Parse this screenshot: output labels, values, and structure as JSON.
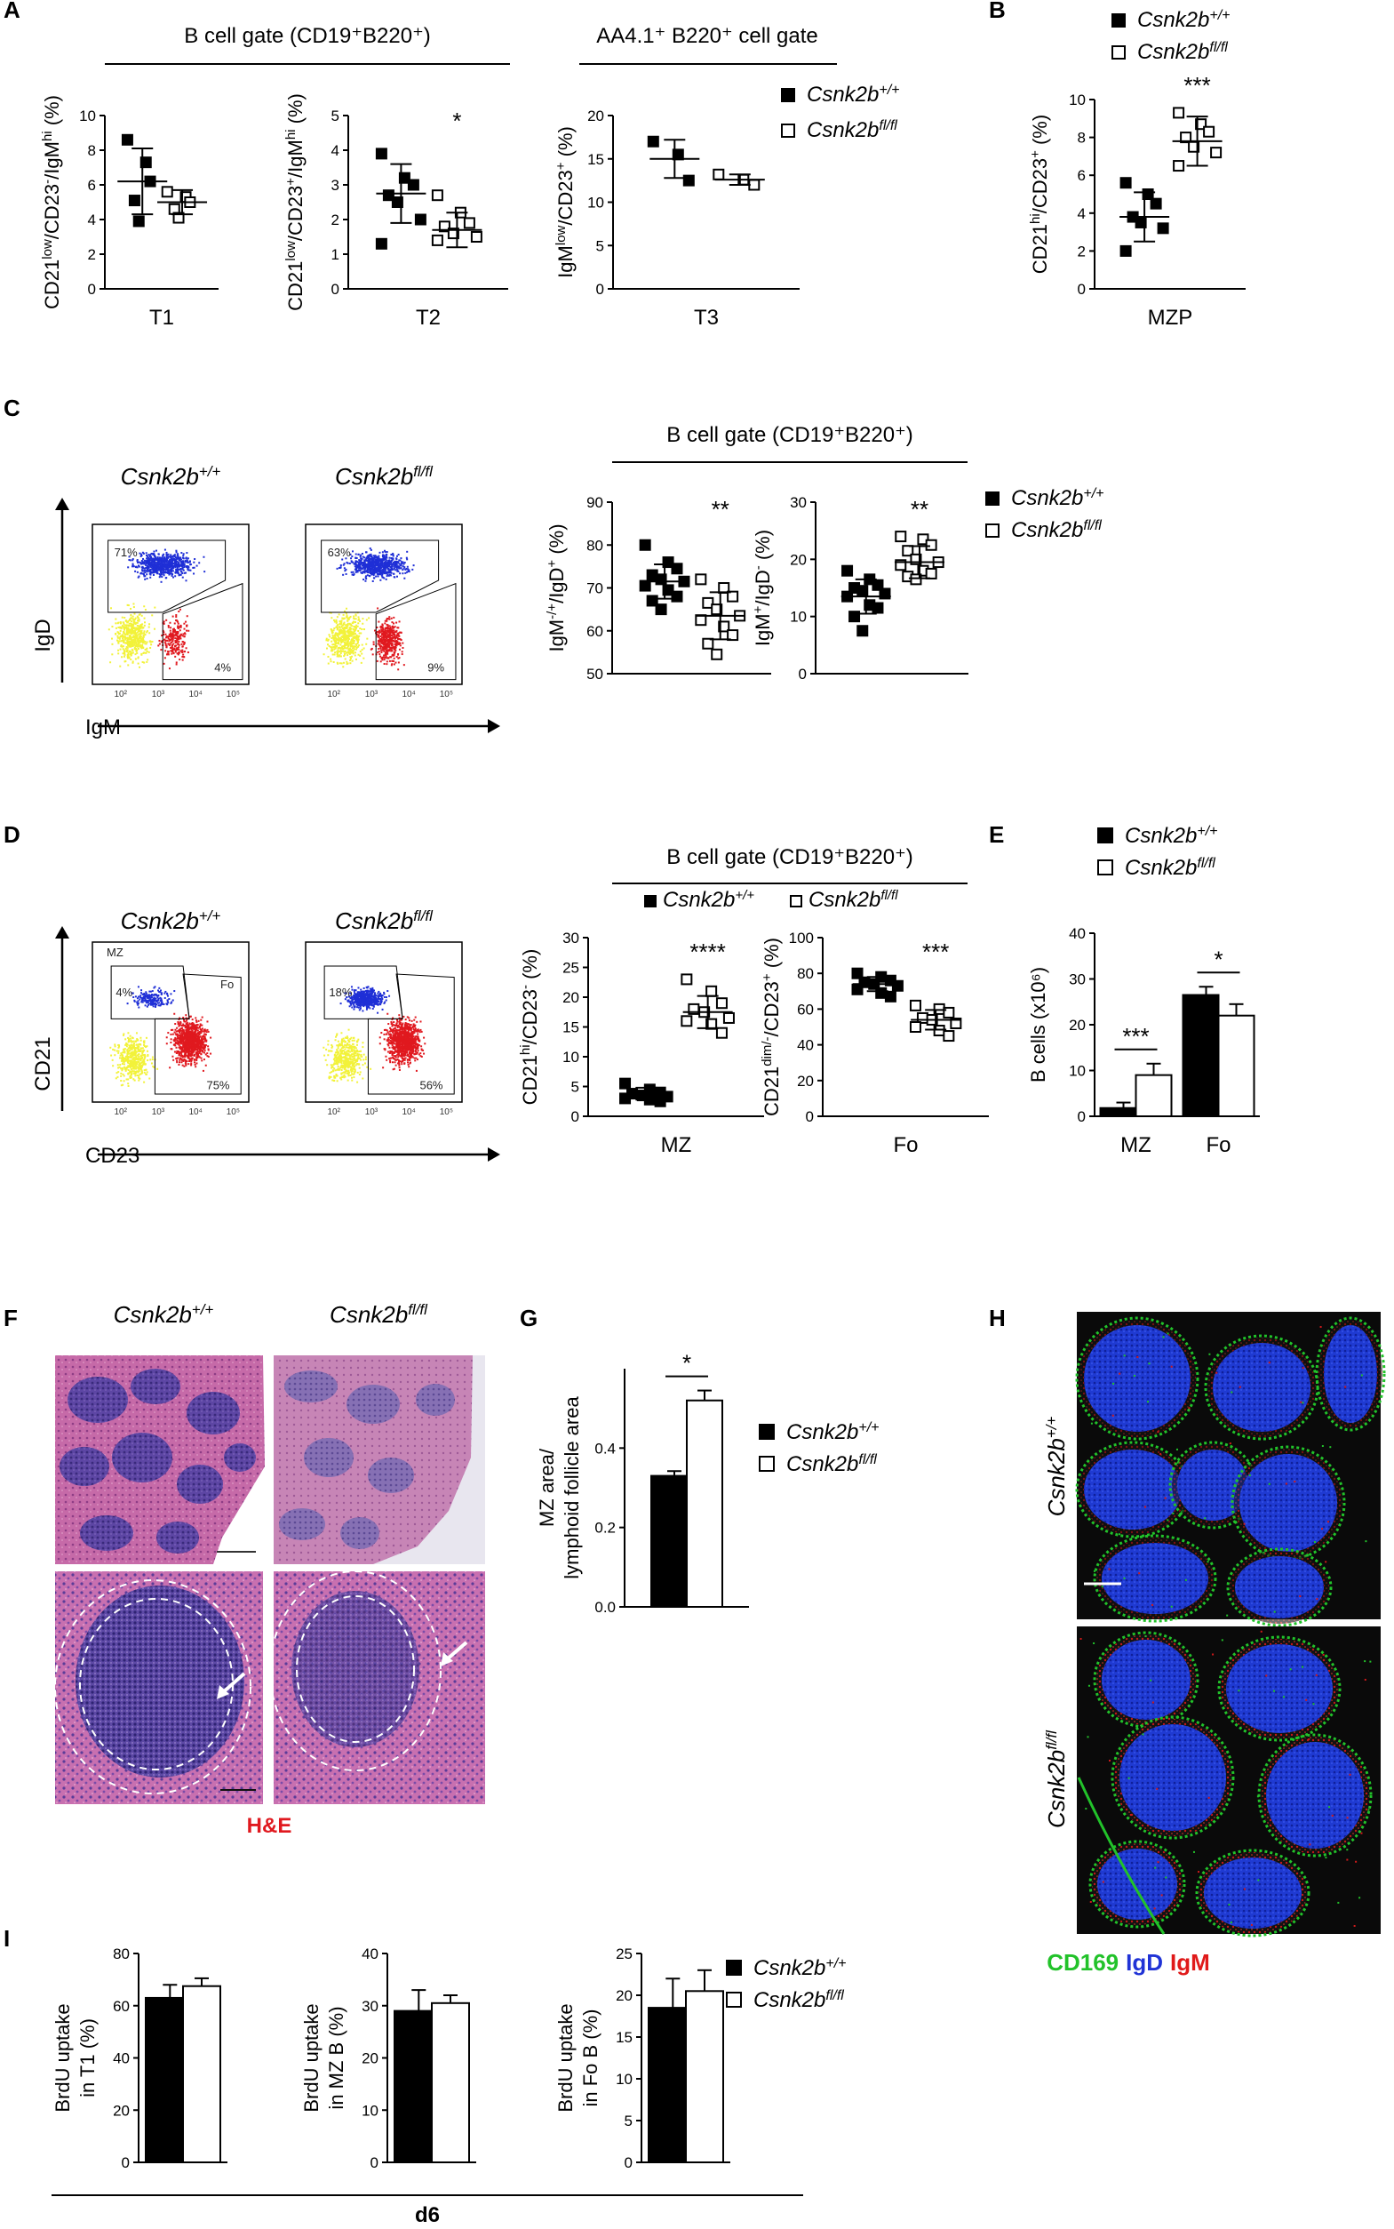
{
  "legend": {
    "wt": "Csnk2b+/+",
    "wt_base": "Csnk2b",
    "wt_sup": "+/+",
    "ko": "Csnk2bfl/fl",
    "ko_base": "Csnk2b",
    "ko_sup": "fl/fl"
  },
  "colors": {
    "wt_fill": "#000000",
    "ko_fill": "#ffffff",
    "facs_blue": "#1f2fd6",
    "facs_red": "#e0191f",
    "facs_yellow": "#f2f23a",
    "he_pink": "#c2559a",
    "he_purple": "#5a3f9e",
    "cd169_green": "#22c22a",
    "igd_blue": "#2033d6",
    "igm_red": "#e01a1a"
  },
  "panels": {
    "A": {
      "letter": "A",
      "gate1": "B cell gate (CD19⁺B220⁺)",
      "gate2": "AA4.1⁺ B220⁺ cell gate"
    },
    "B": {
      "letter": "B"
    },
    "C": {
      "letter": "C",
      "gate": "B cell gate (CD19⁺B220⁺)",
      "facs_y": "IgD",
      "facs_x": "IgM",
      "wt_pcts": [
        "71%",
        "4%"
      ],
      "ko_pcts": [
        "63%",
        "9%"
      ]
    },
    "D": {
      "letter": "D",
      "gate": "B cell gate (CD19⁺B220⁺)",
      "facs_y": "CD21",
      "facs_x": "CD23",
      "gate_mz": "MZ",
      "gate_fo": "Fo",
      "wt_pcts": [
        "4%",
        "75%"
      ],
      "ko_pcts": [
        "18%",
        "56%"
      ]
    },
    "E": {
      "letter": "E"
    },
    "F": {
      "letter": "F",
      "stain": "H&E"
    },
    "G": {
      "letter": "G"
    },
    "H": {
      "letter": "H",
      "stain_cd169": "CD169",
      "stain_igd": "IgD",
      "stain_igm": "IgM"
    },
    "I": {
      "letter": "I",
      "day": "d6"
    }
  },
  "chart_data": [
    {
      "id": "A1",
      "type": "scatter",
      "xlabel": "T1",
      "ylabel": "CD21low/CD23-/IgMhi (%)",
      "ylim": [
        0,
        10
      ],
      "yticks": [
        0,
        2,
        4,
        6,
        8,
        10
      ],
      "series": [
        {
          "name": "Csnk2b+/+",
          "values": [
            8.6,
            7.3,
            6.2,
            5.1,
            3.9
          ],
          "mean": 6.2,
          "sd": 1.9
        },
        {
          "name": "Csnk2bfl/fl",
          "values": [
            5.6,
            5.3,
            5.0,
            4.6,
            4.1
          ],
          "mean": 5.0,
          "sd": 0.7
        }
      ]
    },
    {
      "id": "A2",
      "type": "scatter",
      "xlabel": "T2",
      "ylabel": "CD21low/CD23+/IgMhi (%)",
      "ylim": [
        0,
        5
      ],
      "yticks": [
        0,
        1,
        2,
        3,
        4,
        5
      ],
      "significance": "*",
      "series": [
        {
          "name": "Csnk2b+/+",
          "values": [
            3.9,
            3.2,
            3.0,
            2.7,
            2.5,
            2.0,
            1.3
          ],
          "mean": 2.75,
          "sd": 0.85
        },
        {
          "name": "Csnk2bfl/fl",
          "values": [
            2.7,
            2.2,
            1.9,
            1.8,
            1.6,
            1.5,
            1.4
          ],
          "mean": 1.7,
          "sd": 0.5
        }
      ]
    },
    {
      "id": "A3",
      "type": "scatter",
      "xlabel": "T3",
      "ylabel": "IgMlow/CD23+ (%)",
      "ylim": [
        0,
        20
      ],
      "yticks": [
        0,
        5,
        10,
        15,
        20
      ],
      "series": [
        {
          "name": "Csnk2b+/+",
          "values": [
            17.0,
            15.5,
            12.5
          ],
          "mean": 15.0,
          "sd": 2.2
        },
        {
          "name": "Csnk2bfl/fl",
          "values": [
            13.2,
            12.6,
            12.0
          ],
          "mean": 12.6,
          "sd": 0.6
        }
      ]
    },
    {
      "id": "B",
      "type": "scatter",
      "xlabel": "MZP",
      "ylabel": "CD21hi/CD23+ (%)",
      "ylim": [
        0,
        10
      ],
      "yticks": [
        0,
        2,
        4,
        6,
        8,
        10
      ],
      "significance": "***",
      "series": [
        {
          "name": "Csnk2b+/+",
          "values": [
            5.6,
            5.0,
            4.5,
            3.8,
            3.5,
            3.2,
            2.0
          ],
          "mean": 3.8,
          "sd": 1.3
        },
        {
          "name": "Csnk2bfl/fl",
          "values": [
            9.3,
            8.7,
            8.3,
            8.0,
            7.5,
            7.2,
            6.5
          ],
          "mean": 7.8,
          "sd": 1.3
        }
      ]
    },
    {
      "id": "C1",
      "type": "scatter",
      "xlabel": "",
      "ylabel": "IgM-/+/IgD+ (%)",
      "ylim": [
        50,
        90
      ],
      "yticks": [
        50,
        60,
        70,
        80,
        90
      ],
      "significance": "**",
      "series": [
        {
          "name": "Csnk2b+/+",
          "values": [
            80.0,
            76.0,
            74.5,
            73.0,
            72.0,
            71.5,
            70.5,
            69.5,
            68.0,
            67.0,
            65.0
          ],
          "mean": 71.5,
          "sd": 4.0
        },
        {
          "name": "Csnk2bfl/fl",
          "values": [
            72.0,
            70.0,
            68.0,
            66.5,
            65.0,
            63.5,
            62.5,
            61.0,
            59.0,
            57.0,
            54.5
          ],
          "mean": 63.5,
          "sd": 5.5
        }
      ]
    },
    {
      "id": "C2",
      "type": "scatter",
      "xlabel": "",
      "ylabel": "IgM+/IgD- (%)",
      "ylim": [
        0,
        30
      ],
      "yticks": [
        0,
        10,
        20,
        30
      ],
      "significance": "**",
      "series": [
        {
          "name": "Csnk2b+/+",
          "values": [
            18.0,
            16.5,
            15.5,
            15.0,
            14.5,
            14.0,
            13.5,
            12.0,
            11.5,
            10.0,
            7.5
          ],
          "mean": 13.5,
          "sd": 3.0
        },
        {
          "name": "Csnk2bfl/fl",
          "values": [
            24.0,
            23.5,
            22.5,
            21.5,
            20.0,
            19.5,
            19.0,
            18.0,
            17.5,
            17.0,
            16.5
          ],
          "mean": 19.5,
          "sd": 2.8
        }
      ]
    },
    {
      "id": "D1",
      "type": "scatter",
      "xlabel": "MZ",
      "ylabel": "CD21hi/CD23- (%)",
      "ylim": [
        0,
        30
      ],
      "yticks": [
        0,
        5,
        10,
        15,
        20,
        25,
        30
      ],
      "significance": "****",
      "series": [
        {
          "name": "Csnk2b+/+",
          "values": [
            5.5,
            4.5,
            4.0,
            3.8,
            3.5,
            3.3,
            3.0,
            2.8,
            2.5
          ],
          "mean": 3.8,
          "sd": 1.0
        },
        {
          "name": "Csnk2bfl/fl",
          "values": [
            23.0,
            21.0,
            19.0,
            18.0,
            17.5,
            16.5,
            16.0,
            15.5,
            14.0
          ],
          "mean": 17.5,
          "sd": 2.7
        }
      ]
    },
    {
      "id": "D2",
      "type": "scatter",
      "xlabel": "Fo",
      "ylabel": "CD21dim/-/CD23+ (%)",
      "ylim": [
        0,
        100
      ],
      "yticks": [
        0,
        20,
        40,
        60,
        80,
        100
      ],
      "significance": "***",
      "series": [
        {
          "name": "Csnk2b+/+",
          "values": [
            80.0,
            78.0,
            76.0,
            75.0,
            74.0,
            73.0,
            71.0,
            69.0,
            67.0
          ],
          "mean": 74.0,
          "sd": 4.0
        },
        {
          "name": "Csnk2bfl/fl",
          "values": [
            62.0,
            60.0,
            58.0,
            55.0,
            54.0,
            52.0,
            50.0,
            48.0,
            45.0
          ],
          "mean": 54.0,
          "sd": 5.5
        }
      ]
    },
    {
      "id": "E",
      "type": "bar",
      "categories": [
        "MZ",
        "Fo"
      ],
      "ylabel": "B cells (x10⁶)",
      "ylim": [
        0,
        40
      ],
      "yticks": [
        0,
        10,
        20,
        30,
        40
      ],
      "significance": [
        "***",
        "*"
      ],
      "series": [
        {
          "name": "Csnk2b+/+",
          "values": [
            1.8,
            26.5
          ],
          "err": [
            1.2,
            1.8
          ]
        },
        {
          "name": "Csnk2bfl/fl",
          "values": [
            9.0,
            22.0
          ],
          "err": [
            2.5,
            2.5
          ]
        }
      ]
    },
    {
      "id": "G",
      "type": "bar",
      "categories": [
        ""
      ],
      "ylabel": "MZ area/ lymphoid follicle area",
      "ylim": [
        0,
        0.6
      ],
      "yticks": [
        "0.0",
        "0.2",
        "0.4"
      ],
      "significance": [
        "*"
      ],
      "series": [
        {
          "name": "Csnk2b+/+",
          "values": [
            0.33
          ],
          "err": [
            0.012
          ]
        },
        {
          "name": "Csnk2bfl/fl",
          "values": [
            0.52
          ],
          "err": [
            0.025
          ]
        }
      ]
    },
    {
      "id": "I1",
      "type": "bar",
      "categories": [
        ""
      ],
      "ylabel": "BrdU uptake in T1 (%)",
      "ylim": [
        0,
        80
      ],
      "yticks": [
        0,
        20,
        40,
        60,
        80
      ],
      "series": [
        {
          "name": "Csnk2b+/+",
          "values": [
            63
          ],
          "err": [
            5
          ]
        },
        {
          "name": "Csnk2bfl/fl",
          "values": [
            67.5
          ],
          "err": [
            3
          ]
        }
      ]
    },
    {
      "id": "I2",
      "type": "bar",
      "categories": [
        ""
      ],
      "ylabel": "BrdU uptake in MZ B (%)",
      "ylim": [
        0,
        40
      ],
      "yticks": [
        0,
        10,
        20,
        30,
        40
      ],
      "series": [
        {
          "name": "Csnk2b+/+",
          "values": [
            29
          ],
          "err": [
            4
          ]
        },
        {
          "name": "Csnk2bfl/fl",
          "values": [
            30.5
          ],
          "err": [
            1.5
          ]
        }
      ]
    },
    {
      "id": "I3",
      "type": "bar",
      "categories": [
        ""
      ],
      "ylabel": "BrdU uptake in Fo B (%)",
      "ylim": [
        0,
        25
      ],
      "yticks": [
        0,
        5,
        10,
        15,
        20,
        25
      ],
      "series": [
        {
          "name": "Csnk2b+/+",
          "values": [
            18.5
          ],
          "err": [
            3.5
          ]
        },
        {
          "name": "Csnk2bfl/fl",
          "values": [
            20.5
          ],
          "err": [
            2.5
          ]
        }
      ]
    }
  ]
}
